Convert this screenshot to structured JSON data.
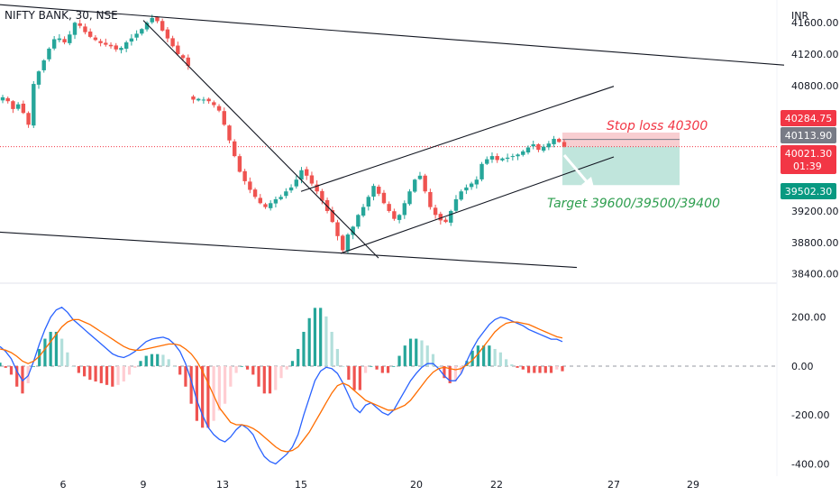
{
  "header": {
    "symbol": "NIFTY BANK, 30, NSE",
    "currency": "INR"
  },
  "annotations": {
    "stop_loss": "Stop loss 40300",
    "target": "Target 39600/39500/39400"
  },
  "badges": {
    "b1": {
      "value": "40284.75",
      "color": "#f23645"
    },
    "b2": {
      "value": "40113.90",
      "color": "#787b86"
    },
    "b3": {
      "value": "40021.30",
      "timer": "01:39",
      "color": "#f23645"
    },
    "b4": {
      "value": "39502.30",
      "color": "#089981"
    }
  },
  "colors": {
    "up": "#26a69a",
    "down": "#ef5350",
    "macd": "#2962ff",
    "signal": "#ff6d00",
    "hist_up_strong": "#26a69a",
    "hist_up_weak": "#b2dfdb",
    "hist_down_strong": "#ef5350",
    "hist_down_weak": "#ffcdd2",
    "stop_zone": "#f7c6c9",
    "target_zone": "#b5e0d6"
  },
  "chart_data": [
    {
      "type": "candlestick",
      "title": "NIFTY BANK, 30, NSE",
      "y_axis": {
        "unit": "INR",
        "ticks": [
          "41600.00",
          "41200.00",
          "40800.00",
          "39200.00",
          "38800.00",
          "38400.00"
        ],
        "ylim": [
          38280,
          41890
        ]
      },
      "x_axis": {
        "ticks": [
          "6",
          "9",
          "13",
          "15",
          "20",
          "22",
          "27",
          "29"
        ]
      },
      "path_close": [
        40650,
        40600,
        40500,
        40560,
        40450,
        40300,
        40820,
        40980,
        41120,
        41270,
        41390,
        41400,
        41350,
        41450,
        41600,
        41560,
        41480,
        41420,
        41380,
        41340,
        41320,
        41300,
        41260,
        41280,
        41350,
        41400,
        41460,
        41520,
        41600,
        41660,
        41620,
        41500,
        41400,
        41300,
        41200,
        41150,
        41050,
        40620,
        40630,
        40620,
        40600,
        40550,
        40480,
        40300,
        40100,
        39900,
        39700,
        39580,
        39470,
        39380,
        39300,
        39250,
        39300,
        39350,
        39380,
        39450,
        39500,
        39600,
        39720,
        39650,
        39550,
        39450,
        39330,
        39200,
        39060,
        38880,
        38700,
        38900,
        39000,
        39150,
        39250,
        39380,
        39520,
        39420,
        39300,
        39200,
        39100,
        39150,
        39300,
        39450,
        39600,
        39650,
        39450,
        39250,
        39150,
        39080,
        39060,
        39200,
        39350,
        39450,
        39500,
        39550,
        39600,
        39800,
        39860,
        39900,
        39850,
        39870,
        39880,
        39900,
        39920,
        39960,
        40010,
        40050,
        39980,
        40020,
        40060,
        40120,
        40080,
        40021
      ],
      "trend_lines": [
        {
          "from": [
            "3 Oct",
            41830
          ],
          "to": [
            "23 Oct",
            41060
          ]
        },
        {
          "from": [
            "9 Oct",
            41630
          ],
          "to": [
            "17 Oct",
            38600
          ]
        },
        {
          "from": [
            "16 Oct",
            38660
          ],
          "to": [
            "27 Oct",
            39890
          ]
        },
        {
          "from": [
            "15 Oct",
            39450
          ],
          "to": [
            "27 Oct",
            40790
          ]
        },
        {
          "from": [
            "3 Oct",
            38930
          ],
          "to": [
            "26 Oct",
            38480
          ]
        }
      ],
      "positions": {
        "stop_zone": [
          40021,
          40200
        ],
        "target_zone": [
          39530,
          40021
        ]
      }
    },
    {
      "type": "macd",
      "y_axis": {
        "ticks": [
          "200.00",
          "0.00",
          "-200.00",
          "-400.00"
        ],
        "ylim": [
          -450,
          280
        ]
      },
      "macd": [
        80,
        60,
        30,
        -20,
        -60,
        -40,
        20,
        90,
        150,
        200,
        230,
        240,
        220,
        190,
        170,
        150,
        130,
        110,
        90,
        70,
        50,
        40,
        35,
        45,
        60,
        80,
        100,
        110,
        115,
        118,
        110,
        90,
        60,
        10,
        -60,
        -140,
        -200,
        -250,
        -280,
        -300,
        -310,
        -290,
        -260,
        -240,
        -255,
        -280,
        -330,
        -370,
        -390,
        -400,
        -380,
        -360,
        -330,
        -280,
        -200,
        -130,
        -60,
        -20,
        -5,
        -10,
        -30,
        -70,
        -120,
        -170,
        -190,
        -160,
        -150,
        -170,
        -190,
        -200,
        -180,
        -140,
        -100,
        -60,
        -30,
        -5,
        10,
        10,
        -10,
        -40,
        -60,
        -60,
        -30,
        20,
        70,
        110,
        140,
        170,
        190,
        200,
        195,
        185,
        175,
        165,
        150,
        140,
        130,
        120,
        110,
        110,
        100
      ],
      "signal": [
        70,
        65,
        55,
        40,
        20,
        10,
        20,
        40,
        70,
        100,
        130,
        160,
        180,
        190,
        190,
        180,
        170,
        155,
        140,
        125,
        110,
        95,
        80,
        70,
        65,
        65,
        70,
        75,
        80,
        85,
        90,
        90,
        85,
        70,
        50,
        20,
        -20,
        -70,
        -120,
        -170,
        -200,
        -230,
        -240,
        -240,
        -245,
        -255,
        -270,
        -290,
        -310,
        -330,
        -345,
        -350,
        -345,
        -330,
        -300,
        -270,
        -230,
        -190,
        -150,
        -110,
        -80,
        -70,
        -80,
        -100,
        -120,
        -140,
        -150,
        -160,
        -170,
        -180,
        -180,
        -170,
        -160,
        -140,
        -110,
        -80,
        -50,
        -25,
        -10,
        -5,
        -10,
        -15,
        -10,
        5,
        25,
        50,
        80,
        110,
        140,
        160,
        175,
        180,
        180,
        175,
        170,
        160,
        150,
        140,
        130,
        120,
        115
      ],
      "zero_line": 0
    }
  ]
}
